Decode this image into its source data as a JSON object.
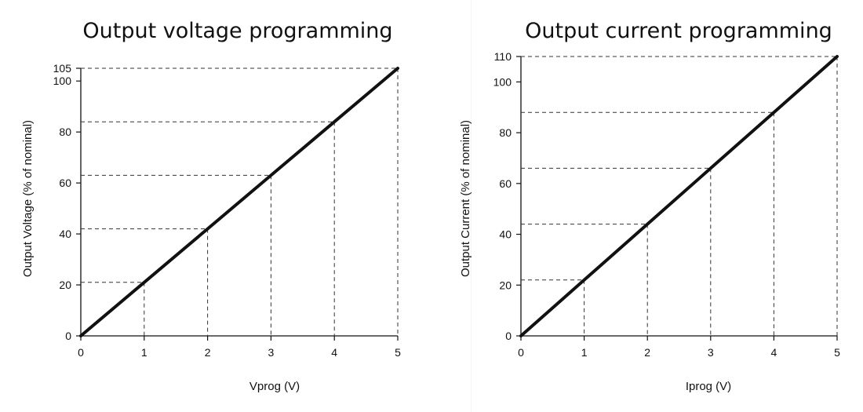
{
  "colors": {
    "line": "#111111",
    "guide": "#333333",
    "background": "#ffffff"
  },
  "chart_data": [
    {
      "type": "line",
      "title": "Output voltage programming",
      "xlabel": "Vprog (V)",
      "ylabel": "Output Voltage (% of nominal)",
      "xlim": [
        0,
        5
      ],
      "ylim": [
        0,
        105
      ],
      "x_ticks": [
        "0",
        "1",
        "2",
        "3",
        "4",
        "5"
      ],
      "y_ticks": [
        {
          "value": 0,
          "label": "0"
        },
        {
          "value": 20,
          "label": "20"
        },
        {
          "value": 40,
          "label": "40"
        },
        {
          "value": 60,
          "label": "60"
        },
        {
          "value": 80,
          "label": "80"
        },
        {
          "value": 100,
          "label": "100"
        },
        {
          "value": 105,
          "label": "105"
        }
      ],
      "x": [
        0,
        1,
        2,
        3,
        4,
        5
      ],
      "series": [
        {
          "name": "Output Voltage",
          "values": [
            0,
            21,
            42,
            63,
            84,
            105
          ]
        }
      ],
      "guides": [
        {
          "x": 1,
          "y": 21
        },
        {
          "x": 2,
          "y": 42
        },
        {
          "x": 3,
          "y": 63
        },
        {
          "x": 4,
          "y": 84
        },
        {
          "x": 5,
          "y": 105
        }
      ],
      "grid": false
    },
    {
      "type": "line",
      "title": "Output current programming",
      "xlabel": "Iprog (V)",
      "ylabel": "Output Current (% of nominal)",
      "xlim": [
        0,
        5
      ],
      "ylim": [
        0,
        110
      ],
      "x_ticks": [
        "0",
        "1",
        "2",
        "3",
        "4",
        "5"
      ],
      "y_ticks": [
        {
          "value": 0,
          "label": "0"
        },
        {
          "value": 20,
          "label": "20"
        },
        {
          "value": 40,
          "label": "40"
        },
        {
          "value": 60,
          "label": "60"
        },
        {
          "value": 80,
          "label": "80"
        },
        {
          "value": 100,
          "label": "100"
        },
        {
          "value": 110,
          "label": "110"
        }
      ],
      "x": [
        0,
        1,
        2,
        3,
        4,
        5
      ],
      "series": [
        {
          "name": "Output Current",
          "values": [
            0,
            22,
            44,
            66,
            88,
            110
          ]
        }
      ],
      "guides": [
        {
          "x": 1,
          "y": 22
        },
        {
          "x": 2,
          "y": 44
        },
        {
          "x": 3,
          "y": 66
        },
        {
          "x": 4,
          "y": 88
        },
        {
          "x": 5,
          "y": 110
        }
      ],
      "grid": false
    }
  ]
}
